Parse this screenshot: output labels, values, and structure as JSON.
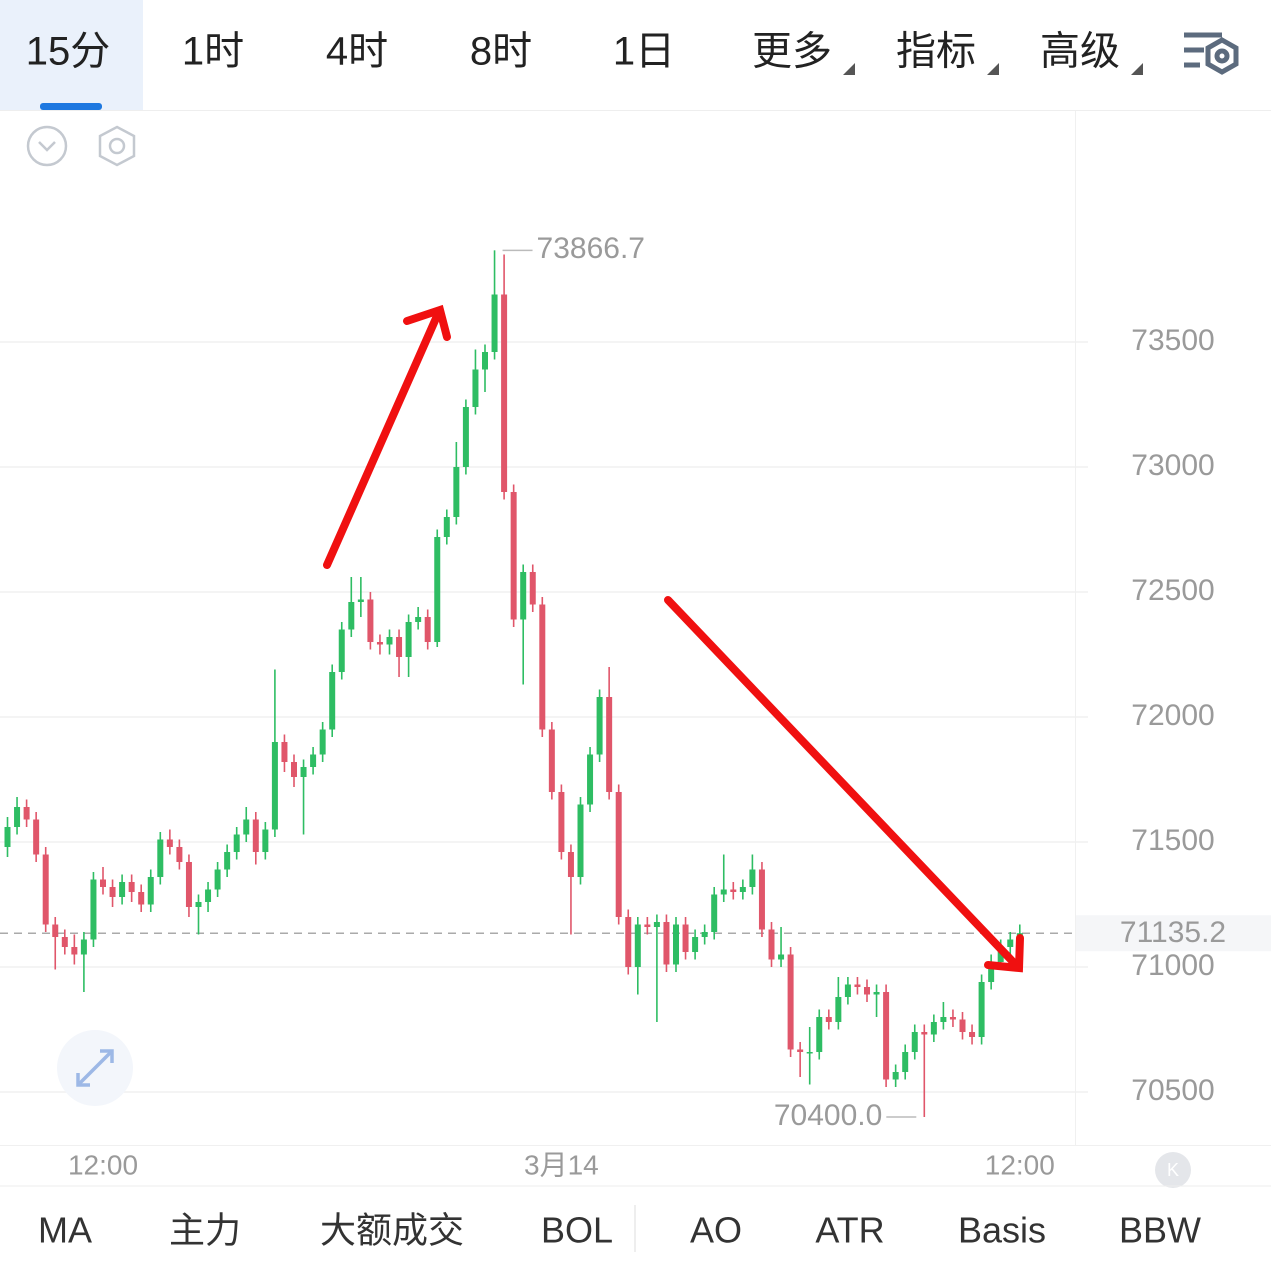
{
  "tabs": [
    "15分",
    "1时",
    "4时",
    "8时",
    "1日",
    "更多",
    "指标",
    "高级"
  ],
  "indicators": [
    "MA",
    "主力",
    "大额成交",
    "BOL",
    "AO",
    "ATR",
    "Basis",
    "BBW"
  ],
  "chart_data": {
    "type": "candlestick",
    "up_color": "#2ebd63",
    "down_color": "#e0566a",
    "ylim": [
      70288,
      74428
    ],
    "yticks": [
      70500,
      71000,
      71500,
      72000,
      72500,
      73000,
      73500
    ],
    "grid": true,
    "max_label": "73866.7",
    "min_label": "70400.0",
    "last_price": {
      "value": 71135.2,
      "label": "71135.2"
    },
    "categories": [
      null,
      null,
      null,
      null,
      null,
      null,
      null,
      null,
      null,
      null,
      "12:00",
      null,
      null,
      null,
      null,
      null,
      null,
      null,
      null,
      null,
      null,
      null,
      null,
      null,
      null,
      null,
      null,
      null,
      null,
      null,
      null,
      null,
      null,
      null,
      null,
      null,
      null,
      null,
      null,
      null,
      null,
      null,
      null,
      null,
      null,
      null,
      null,
      null,
      null,
      null,
      null,
      null,
      null,
      null,
      null,
      null,
      null,
      null,
      "3月14",
      null,
      null,
      null,
      null,
      null,
      null,
      null,
      null,
      null,
      null,
      null,
      null,
      null,
      null,
      null,
      null,
      null,
      null,
      null,
      null,
      null,
      null,
      null,
      null,
      null,
      null,
      null,
      null,
      null,
      null,
      null,
      null,
      null,
      null,
      null,
      null,
      null,
      null,
      null,
      null,
      null,
      null,
      null,
      null,
      null,
      null,
      null,
      "12:00"
    ],
    "ohlc": [
      [
        71480,
        71600,
        71440,
        71560
      ],
      [
        71560,
        71680,
        71530,
        71640
      ],
      [
        71640,
        71670,
        71560,
        71590
      ],
      [
        71590,
        71620,
        71420,
        71450
      ],
      [
        71450,
        71480,
        71140,
        71170
      ],
      [
        71170,
        71200,
        70990,
        71120
      ],
      [
        71120,
        71150,
        71050,
        71080
      ],
      [
        71080,
        71130,
        71010,
        71050
      ],
      [
        71050,
        71140,
        70900,
        71110
      ],
      [
        71110,
        71380,
        71080,
        71350
      ],
      [
        71350,
        71400,
        71290,
        71320
      ],
      [
        71320,
        71350,
        71240,
        71280
      ],
      [
        71280,
        71370,
        71250,
        71340
      ],
      [
        71340,
        71370,
        71260,
        71300
      ],
      [
        71300,
        71330,
        71220,
        71250
      ],
      [
        71250,
        71390,
        71220,
        71360
      ],
      [
        71360,
        71540,
        71330,
        71510
      ],
      [
        71510,
        71550,
        71450,
        71480
      ],
      [
        71480,
        71510,
        71390,
        71420
      ],
      [
        71420,
        71450,
        71200,
        71240
      ],
      [
        71240,
        71290,
        71130,
        71260
      ],
      [
        71260,
        71340,
        71220,
        71310
      ],
      [
        71310,
        71420,
        71280,
        71390
      ],
      [
        71390,
        71490,
        71360,
        71460
      ],
      [
        71460,
        71560,
        71430,
        71530
      ],
      [
        71530,
        71640,
        71500,
        71590
      ],
      [
        71590,
        71620,
        71410,
        71460
      ],
      [
        71460,
        71580,
        71430,
        71550
      ],
      [
        71550,
        72190,
        71520,
        71900
      ],
      [
        71900,
        71930,
        71780,
        71820
      ],
      [
        71820,
        71850,
        71720,
        71760
      ],
      [
        71760,
        71830,
        71530,
        71800
      ],
      [
        71800,
        71880,
        71770,
        71850
      ],
      [
        71850,
        71980,
        71820,
        71950
      ],
      [
        71950,
        72210,
        71920,
        72180
      ],
      [
        72180,
        72380,
        72150,
        72350
      ],
      [
        72350,
        72560,
        72320,
        72460
      ],
      [
        72460,
        72560,
        72400,
        72470
      ],
      [
        72470,
        72500,
        72270,
        72300
      ],
      [
        72300,
        72330,
        72250,
        72290
      ],
      [
        72290,
        72350,
        72250,
        72320
      ],
      [
        72320,
        72350,
        72160,
        72240
      ],
      [
        72240,
        72410,
        72160,
        72380
      ],
      [
        72380,
        72440,
        72350,
        72400
      ],
      [
        72400,
        72430,
        72270,
        72300
      ],
      [
        72300,
        72750,
        72280,
        72720
      ],
      [
        72720,
        72830,
        72690,
        72800
      ],
      [
        72800,
        73100,
        72770,
        73000
      ],
      [
        73000,
        73270,
        72970,
        73240
      ],
      [
        73240,
        73470,
        73210,
        73390
      ],
      [
        73390,
        73490,
        73300,
        73460
      ],
      [
        73460,
        73866.7,
        73430,
        73690
      ],
      [
        73690,
        73850,
        72870,
        72900
      ],
      [
        72900,
        72930,
        72360,
        72390
      ],
      [
        72390,
        72610,
        72130,
        72580
      ],
      [
        72580,
        72610,
        72420,
        72450
      ],
      [
        72450,
        72480,
        71920,
        71950
      ],
      [
        71950,
        71980,
        71670,
        71700
      ],
      [
        71700,
        71730,
        71430,
        71460
      ],
      [
        71460,
        71490,
        71130,
        71360
      ],
      [
        71360,
        71680,
        71330,
        71650
      ],
      [
        71650,
        71880,
        71620,
        71850
      ],
      [
        71850,
        72110,
        71820,
        72080
      ],
      [
        72080,
        72200,
        71670,
        71700
      ],
      [
        71700,
        71730,
        71170,
        71200
      ],
      [
        71200,
        71230,
        70970,
        71000
      ],
      [
        71000,
        71200,
        70890,
        71170
      ],
      [
        71170,
        71200,
        71130,
        71160
      ],
      [
        71160,
        71210,
        70780,
        71180
      ],
      [
        71180,
        71210,
        70980,
        71010
      ],
      [
        71010,
        71200,
        70980,
        71170
      ],
      [
        71170,
        71200,
        71030,
        71060
      ],
      [
        71060,
        71150,
        71030,
        71120
      ],
      [
        71120,
        71170,
        71090,
        71140
      ],
      [
        71140,
        71320,
        71110,
        71290
      ],
      [
        71290,
        71450,
        71260,
        71310
      ],
      [
        71310,
        71340,
        71270,
        71300
      ],
      [
        71300,
        71350,
        71270,
        71320
      ],
      [
        71320,
        71450,
        71290,
        71390
      ],
      [
        71390,
        71420,
        71120,
        71150
      ],
      [
        71150,
        71180,
        71000,
        71030
      ],
      [
        71030,
        71160,
        71000,
        71050
      ],
      [
        71050,
        71080,
        70640,
        70670
      ],
      [
        70670,
        70700,
        70560,
        70660
      ],
      [
        70660,
        70760,
        70530,
        70660
      ],
      [
        70660,
        70830,
        70630,
        70800
      ],
      [
        70800,
        70830,
        70750,
        70780
      ],
      [
        70780,
        70960,
        70750,
        70880
      ],
      [
        70880,
        70960,
        70850,
        70930
      ],
      [
        70930,
        70960,
        70890,
        70920
      ],
      [
        70920,
        70950,
        70860,
        70890
      ],
      [
        70890,
        70930,
        70800,
        70900
      ],
      [
        70900,
        70930,
        70520,
        70550
      ],
      [
        70550,
        70610,
        70520,
        70580
      ],
      [
        70580,
        70690,
        70550,
        70660
      ],
      [
        70660,
        70770,
        70630,
        70740
      ],
      [
        70740,
        70770,
        70400,
        70730
      ],
      [
        70730,
        70810,
        70700,
        70780
      ],
      [
        70780,
        70860,
        70750,
        70800
      ],
      [
        70800,
        70830,
        70760,
        70790
      ],
      [
        70790,
        70820,
        70710,
        70740
      ],
      [
        70740,
        70770,
        70690,
        70720
      ],
      [
        70720,
        70970,
        70690,
        70940
      ],
      [
        70940,
        71050,
        70910,
        71020
      ],
      [
        71020,
        71110,
        70990,
        71080
      ],
      [
        71080,
        71140,
        71050,
        71110
      ],
      [
        71110,
        71170,
        71080,
        71135.2
      ]
    ]
  }
}
